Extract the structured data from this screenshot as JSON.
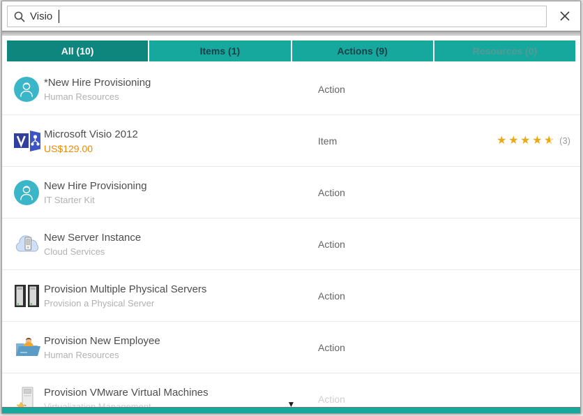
{
  "search": {
    "value": "Visio",
    "placeholder": ""
  },
  "close_glyph": "✕",
  "scroll_more_glyph": "▼",
  "tabs": [
    {
      "id": "all",
      "label": "All (10)",
      "active": true,
      "disabled": false
    },
    {
      "id": "items",
      "label": "Items (1)",
      "active": false,
      "disabled": false
    },
    {
      "id": "actions",
      "label": "Actions (9)",
      "active": false,
      "disabled": false
    },
    {
      "id": "resources",
      "label": "Resources (0)",
      "active": false,
      "disabled": true
    }
  ],
  "results": [
    {
      "title": "*New Hire Provisioning",
      "subtitle": "Human Resources",
      "type": "Action",
      "icon": "person-circle"
    },
    {
      "title": "Microsoft Visio 2012",
      "price": "US$129.00",
      "type": "Item",
      "icon": "visio",
      "rating": {
        "stars": 4.5,
        "count_label": "(3)"
      }
    },
    {
      "title": "New Hire Provisioning",
      "subtitle": "IT Starter Kit",
      "type": "Action",
      "icon": "person-circle"
    },
    {
      "title": "New Server Instance",
      "subtitle": "Cloud Services",
      "type": "Action",
      "icon": "cloud-server"
    },
    {
      "title": "Provision Multiple Physical Servers",
      "subtitle": "Provision a Physical Server",
      "type": "Action",
      "icon": "dual-servers"
    },
    {
      "title": "Provision New Employee",
      "subtitle": "Human Resources",
      "type": "Action",
      "icon": "folder-person"
    },
    {
      "title": "Provision VMware Virtual Machines",
      "subtitle": "Virtualization Management",
      "type": "Action",
      "icon": "vm-server",
      "faded": true
    }
  ],
  "colors": {
    "tab-bg": "#16a79d",
    "tab-active-bg": "#0e867d",
    "price-color": "#f08b00",
    "star-color": "#eca817",
    "person-icon-bg": "#3bb6c9"
  }
}
